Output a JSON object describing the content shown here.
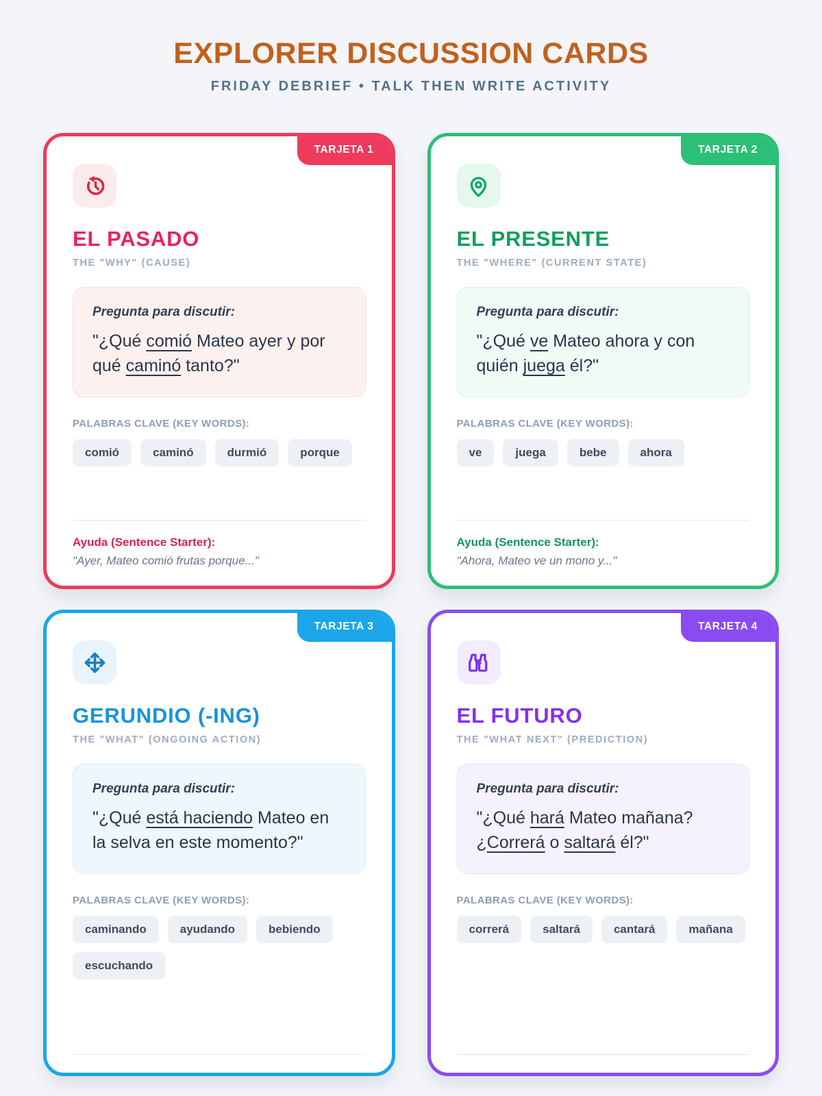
{
  "header": {
    "title": "EXPLORER DISCUSSION CARDS",
    "subtitle": "FRIDAY DEBRIEF • TALK THEN WRITE ACTIVITY",
    "title_color": "#c2611c",
    "subtitle_color": "#55708a"
  },
  "shared_labels": {
    "pregunta": "Pregunta para discutir:",
    "palabras": "PALABRAS CLAVE (KEY WORDS):"
  },
  "cards": [
    {
      "badge": "TARJETA 1",
      "icon": "history-icon",
      "title": "EL PASADO",
      "subtitle": "THE \"WHY\" (CAUSE)",
      "question": [
        {
          "t": "\"¿Qué "
        },
        {
          "t": "comió",
          "u": true
        },
        {
          "t": " Mateo ayer y por qué "
        },
        {
          "t": "caminó",
          "u": true
        },
        {
          "t": " tanto?\""
        }
      ],
      "keywords": [
        "comió",
        "caminó",
        "durmió",
        "porque"
      ],
      "ayuda_label": "Ayuda (Sentence Starter):",
      "ayuda_text": "\"Ayer, Mateo comió frutas porque...\"",
      "colors": {
        "accent": "#ee3a5d",
        "title": "#e8235d",
        "icon": "#e02646",
        "icon_bg": "#fcebeb",
        "q_bg": "#fdf1ef",
        "q_border": "#f7dcd9",
        "divider": "#f8dee3",
        "ayuda": "#d8224e"
      }
    },
    {
      "badge": "TARJETA 2",
      "icon": "map-pin-icon",
      "title": "EL PRESENTE",
      "subtitle": "THE \"WHERE\" (CURRENT STATE)",
      "question": [
        {
          "t": "\"¿Qué "
        },
        {
          "t": "ve",
          "u": true
        },
        {
          "t": " Mateo ahora y con quién "
        },
        {
          "t": "juega",
          "u": true
        },
        {
          "t": " él?\""
        }
      ],
      "keywords": [
        "ve",
        "juega",
        "bebe",
        "ahora"
      ],
      "ayuda_label": "Ayuda (Sentence Starter):",
      "ayuda_text": "\"Ahora, Mateo ve un mono y...\"",
      "colors": {
        "accent": "#2bbf77",
        "title": "#0da05c",
        "icon": "#11a96b",
        "icon_bg": "#e4f8ee",
        "q_bg": "#f1fbf6",
        "q_border": "#d9f2e4",
        "divider": "#d7f2e3",
        "ayuda": "#14926a"
      }
    },
    {
      "badge": "TARJETA 3",
      "icon": "move-arrows-icon",
      "title": "GERUNDIO (-ING)",
      "subtitle": "THE \"WHAT\" (ONGOING ACTION)",
      "question": [
        {
          "t": "\"¿Qué "
        },
        {
          "t": "está haciendo",
          "u": true
        },
        {
          "t": " Mateo en la selva en este momento?\""
        }
      ],
      "keywords": [
        "caminando",
        "ayudando",
        "bebiendo",
        "escuchando"
      ],
      "colors": {
        "accent": "#1aa6e9",
        "title": "#1694da",
        "icon": "#1b7fc5",
        "icon_bg": "#e9f3fb",
        "q_bg": "#eff7fd",
        "q_border": "#dcedf9",
        "divider": "#daeefb",
        "ayuda": "#1694da"
      }
    },
    {
      "badge": "TARJETA 4",
      "icon": "binoculars-icon",
      "title": "EL FUTURO",
      "subtitle": "THE \"WHAT NEXT\" (PREDICTION)",
      "question": [
        {
          "t": "\"¿Qué "
        },
        {
          "t": "hará",
          "u": true
        },
        {
          "t": " Mateo mañana? ¿"
        },
        {
          "t": "Correrá",
          "u": true
        },
        {
          "t": " o "
        },
        {
          "t": "saltará",
          "u": true
        },
        {
          "t": " él?\""
        }
      ],
      "keywords": [
        "correrá",
        "saltará",
        "cantará",
        "mañana"
      ],
      "colors": {
        "accent": "#8a4cf0",
        "title": "#8430ec",
        "icon": "#7c2ff0",
        "icon_bg": "#f2ecfe",
        "q_bg": "#f6f2fd",
        "q_border": "#e9e0fa",
        "divider": "#e9def9",
        "ayuda": "#8430ec"
      }
    }
  ]
}
